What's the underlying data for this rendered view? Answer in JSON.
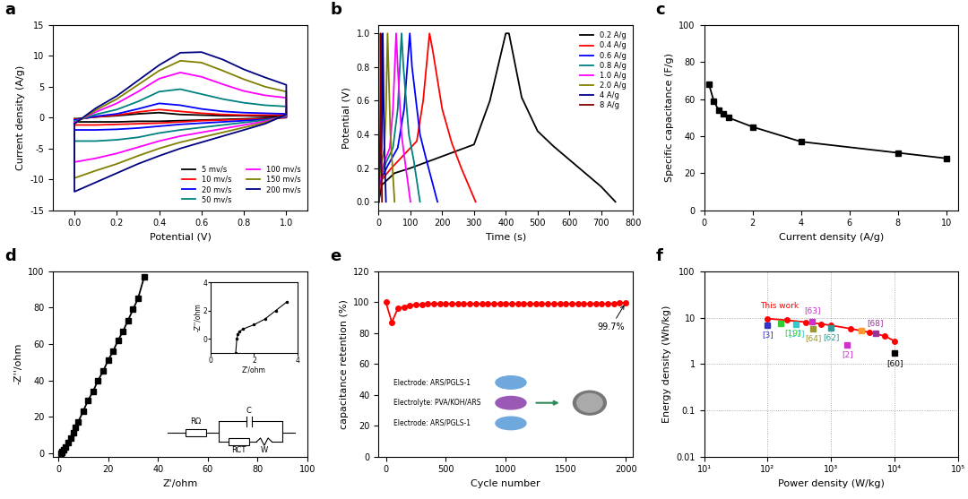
{
  "chart_data": [
    {
      "panel": "a",
      "type": "line",
      "x_label": "Potential (V)",
      "y_label": "Current density (A/g)",
      "xlim": [
        -0.1,
        1.1
      ],
      "xticks": [
        0.0,
        0.2,
        0.4,
        0.6,
        0.8,
        1.0
      ],
      "ylim": [
        -15,
        15
      ],
      "yticks": [
        -15,
        -10,
        -5,
        0,
        5,
        10,
        15
      ],
      "legend": "lower right",
      "x": [
        0.0,
        0.1,
        0.2,
        0.3,
        0.4,
        0.5,
        0.6,
        0.7,
        0.8,
        0.9,
        1.0,
        1.0,
        0.9,
        0.8,
        0.7,
        0.6,
        0.5,
        0.4,
        0.3,
        0.2,
        0.1,
        0.0,
        0.0
      ],
      "series": [
        {
          "name": "5 mv/s",
          "color": "#000000",
          "values": [
            -0.2,
            0.1,
            0.3,
            0.6,
            0.8,
            0.5,
            0.4,
            0.3,
            0.3,
            0.2,
            0.2,
            0.0,
            -0.1,
            -0.2,
            -0.3,
            -0.4,
            -0.5,
            -0.6,
            -0.6,
            -0.7,
            -0.7,
            -0.7,
            -0.2
          ]
        },
        {
          "name": "10 mv/s",
          "color": "#ff0000",
          "values": [
            -0.3,
            0.1,
            0.4,
            0.9,
            1.3,
            1.0,
            0.7,
            0.5,
            0.4,
            0.4,
            0.4,
            0.0,
            -0.2,
            -0.3,
            -0.4,
            -0.5,
            -0.7,
            -0.9,
            -1.0,
            -1.1,
            -1.2,
            -1.2,
            -0.3
          ]
        },
        {
          "name": "20 mv/s",
          "color": "#0000ff",
          "values": [
            -0.4,
            0.2,
            0.6,
            1.4,
            2.3,
            2.0,
            1.4,
            1.0,
            0.8,
            0.7,
            0.6,
            0.1,
            -0.3,
            -0.5,
            -0.7,
            -0.9,
            -1.1,
            -1.4,
            -1.7,
            -1.9,
            -2.0,
            -2.0,
            -0.4
          ]
        },
        {
          "name": "50 mv/s",
          "color": "#008080",
          "values": [
            -0.6,
            0.5,
            1.3,
            2.6,
            4.2,
            4.6,
            3.8,
            3.0,
            2.4,
            2.0,
            1.8,
            0.2,
            -0.4,
            -0.8,
            -1.2,
            -1.6,
            -2.0,
            -2.5,
            -3.2,
            -3.6,
            -3.8,
            -3.8,
            -0.6
          ]
        },
        {
          "name": "100 mv/s",
          "color": "#ff00ff",
          "values": [
            -0.8,
            0.9,
            2.3,
            4.2,
            6.3,
            7.3,
            6.6,
            5.4,
            4.3,
            3.6,
            3.2,
            0.3,
            -0.6,
            -1.2,
            -1.8,
            -2.4,
            -3.0,
            -3.8,
            -4.8,
            -5.8,
            -6.6,
            -7.2,
            -0.8
          ]
        },
        {
          "name": "150 mv/s",
          "color": "#808000",
          "values": [
            -1.0,
            1.2,
            3.0,
            5.3,
            7.6,
            9.2,
            8.9,
            7.6,
            6.2,
            5.0,
            4.2,
            0.4,
            -0.8,
            -1.6,
            -2.4,
            -3.2,
            -4.0,
            -5.0,
            -6.2,
            -7.5,
            -8.6,
            -9.8,
            -1.0
          ]
        },
        {
          "name": "200 mv/s",
          "color": "#000080",
          "values": [
            -1.0,
            1.5,
            3.5,
            6.0,
            8.5,
            10.5,
            10.6,
            9.4,
            7.8,
            6.5,
            5.3,
            0.5,
            -1.0,
            -2.0,
            -3.0,
            -4.0,
            -5.0,
            -6.2,
            -7.5,
            -9.0,
            -10.5,
            -12.0,
            -1.0
          ]
        }
      ]
    },
    {
      "panel": "b",
      "type": "line",
      "x_label": "Time (s)",
      "y_label": "Potential (V)",
      "xlim": [
        0,
        800
      ],
      "xticks": [
        0,
        100,
        200,
        300,
        400,
        500,
        600,
        700,
        800
      ],
      "ylim": [
        -0.05,
        1.05
      ],
      "yticks": [
        0.0,
        0.2,
        0.4,
        0.6,
        0.8,
        1.0
      ],
      "legend": "upper right",
      "series": [
        {
          "name": "0.2 A/g",
          "color": "#000000",
          "x": [
            0,
            10,
            50,
            100,
            200,
            300,
            350,
            400,
            410,
            450,
            500,
            550,
            600,
            650,
            700,
            745
          ],
          "values": [
            0.0,
            0.1,
            0.17,
            0.2,
            0.27,
            0.34,
            0.6,
            1.0,
            1.0,
            0.62,
            0.42,
            0.33,
            0.25,
            0.17,
            0.09,
            0.0
          ]
        },
        {
          "name": "0.4 A/g",
          "color": "#ff0000",
          "x": [
            0,
            5,
            40,
            80,
            120,
            140,
            160,
            170,
            200,
            230,
            260,
            305
          ],
          "values": [
            0.0,
            0.12,
            0.2,
            0.28,
            0.36,
            0.6,
            1.0,
            0.9,
            0.55,
            0.35,
            0.2,
            0.0
          ]
        },
        {
          "name": "0.6 A/g",
          "color": "#0000ff",
          "x": [
            0,
            3,
            30,
            60,
            80,
            98,
            105,
            130,
            150,
            185
          ],
          "values": [
            0.0,
            0.12,
            0.22,
            0.32,
            0.55,
            1.0,
            0.8,
            0.4,
            0.25,
            0.0
          ]
        },
        {
          "name": "0.8 A/g",
          "color": "#008080",
          "x": [
            0,
            2,
            20,
            45,
            60,
            72,
            78,
            95,
            110,
            130
          ],
          "values": [
            0.0,
            0.12,
            0.22,
            0.32,
            0.55,
            1.0,
            0.8,
            0.4,
            0.25,
            0.0
          ]
        },
        {
          "name": "1.0 A/g",
          "color": "#ff00ff",
          "x": [
            0,
            2,
            15,
            35,
            45,
            55,
            60,
            72,
            82,
            100
          ],
          "values": [
            0.0,
            0.12,
            0.22,
            0.32,
            0.55,
            1.0,
            0.8,
            0.4,
            0.25,
            0.0
          ]
        },
        {
          "name": "2.0 A/g",
          "color": "#808000",
          "x": [
            0,
            1,
            8,
            18,
            23,
            28,
            31,
            37,
            42,
            50
          ],
          "values": [
            0.0,
            0.12,
            0.22,
            0.32,
            0.55,
            1.0,
            0.8,
            0.4,
            0.25,
            0.0
          ]
        },
        {
          "name": "4 A/g",
          "color": "#00008b",
          "x": [
            0,
            0.5,
            4,
            9,
            11,
            13,
            14.5,
            17,
            19,
            23
          ],
          "values": [
            0.0,
            0.12,
            0.22,
            0.32,
            0.55,
            1.0,
            0.8,
            0.4,
            0.25,
            0.0
          ]
        },
        {
          "name": "8 A/g",
          "color": "#800000",
          "x": [
            0,
            0.3,
            2,
            4,
            5,
            6,
            6.7,
            8,
            9,
            10.5
          ],
          "values": [
            0.0,
            0.12,
            0.22,
            0.32,
            0.55,
            1.0,
            0.8,
            0.4,
            0.25,
            0.0
          ]
        }
      ]
    },
    {
      "panel": "c",
      "type": "line",
      "x_label": "Current density (A/g)",
      "y_label": "Specific capacitance (F/g)",
      "xlim": [
        0,
        10.5
      ],
      "xticks": [
        0,
        2,
        4,
        6,
        8,
        10
      ],
      "ylim": [
        0,
        100
      ],
      "yticks": [
        0,
        20,
        40,
        60,
        80,
        100
      ],
      "series": [
        {
          "color": "#000000",
          "marker": "square",
          "x": [
            0.2,
            0.4,
            0.6,
            0.8,
            1,
            2,
            4,
            8,
            10
          ],
          "values": [
            68,
            59,
            54,
            52,
            50,
            45,
            37,
            31,
            28
          ]
        }
      ]
    },
    {
      "panel": "d",
      "type": "line",
      "x_label": "Z'/ohm",
      "y_label": "-Z''/ohm",
      "xlim": [
        -2,
        100
      ],
      "xticks": [
        0,
        20,
        40,
        60,
        80,
        100
      ],
      "ylim": [
        -2,
        100
      ],
      "yticks": [
        0,
        20,
        40,
        60,
        80,
        100
      ],
      "series": [
        {
          "color": "#000000",
          "marker": "square",
          "x": [
            1.2,
            1.3,
            1.5,
            2,
            3,
            4,
            5,
            6,
            7,
            8,
            10,
            12,
            14,
            16,
            18,
            20,
            22,
            24,
            26,
            28,
            30,
            32,
            34.5
          ],
          "values": [
            0,
            0.5,
            1,
            2,
            3.5,
            5.5,
            8,
            11,
            14,
            17,
            23,
            29,
            34,
            40,
            45,
            51,
            56,
            62,
            67,
            73,
            79,
            85,
            97
          ]
        }
      ],
      "inset": {
        "x_label": "Z'/ohm",
        "y_label": "-Z''/ohm",
        "xlim": [
          0,
          4
        ],
        "xticks": [
          0,
          2,
          4
        ],
        "ylim": [
          -1,
          4
        ],
        "yticks": [
          0,
          2,
          4
        ],
        "x": [
          1.15,
          1.2,
          1.25,
          1.3,
          1.5,
          2.0,
          2.5,
          3.0,
          3.5
        ],
        "values": [
          -1.0,
          0,
          0.3,
          0.5,
          0.7,
          1.0,
          1.4,
          2.0,
          2.6
        ]
      },
      "circuit": [
        "RΩ",
        "C",
        "RCT",
        "W"
      ]
    },
    {
      "panel": "e",
      "type": "line",
      "x_label": "Cycle number",
      "y_label": "capacitance retention (%)",
      "xlim": [
        -60,
        2060
      ],
      "xticks": [
        0,
        500,
        1000,
        1500,
        2000
      ],
      "ylim": [
        0,
        120
      ],
      "yticks": [
        0,
        20,
        40,
        60,
        80,
        100,
        120
      ],
      "series": [
        {
          "color": "#ff0000",
          "marker": "circle",
          "x": [
            0,
            50,
            100,
            150,
            200,
            250,
            300,
            350,
            400,
            450,
            500,
            550,
            600,
            650,
            700,
            750,
            800,
            850,
            900,
            950,
            1000,
            1050,
            1100,
            1150,
            1200,
            1250,
            1300,
            1350,
            1400,
            1450,
            1500,
            1550,
            1600,
            1650,
            1700,
            1750,
            1800,
            1850,
            1900,
            1950,
            2000
          ],
          "values": [
            100,
            87,
            96,
            97,
            98,
            98.5,
            98.5,
            99,
            99.2,
            99,
            99,
            99.2,
            99,
            99,
            99.2,
            99,
            99.2,
            99,
            99,
            99.2,
            99,
            99,
            99.2,
            99,
            99.2,
            99,
            99,
            99.2,
            99,
            99,
            99.2,
            99,
            99.2,
            99,
            99,
            99.2,
            99,
            99,
            99.2,
            99.5,
            99.7
          ]
        }
      ],
      "annotations": [
        {
          "text": "99.7%",
          "x": 2000,
          "y": 99.7
        }
      ],
      "inset_texts": [
        "Electrode: ARS/PGLS-1",
        "Electrolyte: PVA/KOH/ARS",
        "Electrode: ARS/PGLS-1"
      ]
    },
    {
      "panel": "f",
      "type": "line",
      "x_label": "Power density (W/kg)",
      "y_label": "Energy density (Wh/kg)",
      "log": true,
      "grid": true,
      "xlim": [
        10,
        100000
      ],
      "xticks": [
        {
          "value": 10,
          "label": "10¹"
        },
        {
          "value": 100,
          "label": "10²"
        },
        {
          "value": 1000,
          "label": "10³"
        },
        {
          "value": 10000,
          "label": "10⁴"
        },
        {
          "value": 100000,
          "label": "10⁵"
        }
      ],
      "ylim": [
        0.01,
        100
      ],
      "yticks": [
        0.01,
        0.1,
        1,
        10,
        100
      ],
      "series": [
        {
          "name": "This work",
          "color": "#ff0000",
          "marker": "circle",
          "x": [
            100,
            200,
            400,
            700,
            1000,
            2000,
            4000,
            7000,
            10000
          ],
          "values": [
            9.5,
            8.8,
            8.0,
            7.3,
            6.8,
            5.8,
            4.8,
            4.0,
            3.1
          ]
        },
        {
          "name": "[3]",
          "color": "#3333cc",
          "marker": "square",
          "line_style": "none",
          "x": [
            100
          ],
          "values": [
            7.0
          ]
        },
        {
          "name": "[19]",
          "color": "#33cc33",
          "marker": "square",
          "line_style": "none",
          "x": [
            160
          ],
          "values": [
            7.5
          ]
        },
        {
          "name": "[17]",
          "color": "#33cccc",
          "marker": "square",
          "line_style": "none",
          "x": [
            280
          ],
          "values": [
            7.2
          ]
        },
        {
          "name": "[63]",
          "color": "#cc33cc",
          "marker": "square",
          "line_style": "none",
          "x": [
            500
          ],
          "values": [
            8.2
          ]
        },
        {
          "name": "[64]",
          "color": "#999933",
          "marker": "square",
          "line_style": "none",
          "x": [
            520
          ],
          "values": [
            5.8
          ]
        },
        {
          "name": "[62]",
          "color": "#339999",
          "marker": "square",
          "line_style": "none",
          "x": [
            1000
          ],
          "values": [
            6.0
          ]
        },
        {
          "name": "[2]",
          "color": "#cc33cc",
          "marker": "square",
          "line_style": "none",
          "x": [
            1800
          ],
          "values": [
            2.6
          ]
        },
        {
          "name": null,
          "color": "#ff9933",
          "marker": "square",
          "line_style": "none",
          "x": [
            3000
          ],
          "values": [
            5.3
          ]
        },
        {
          "name": "[68]",
          "color": "#993399",
          "marker": "square",
          "line_style": "none",
          "x": [
            5000
          ],
          "values": [
            4.5
          ]
        },
        {
          "name": "[60]",
          "color": "#000000",
          "marker": "square",
          "line_style": "none",
          "x": [
            10000
          ],
          "values": [
            1.7
          ]
        }
      ]
    }
  ]
}
